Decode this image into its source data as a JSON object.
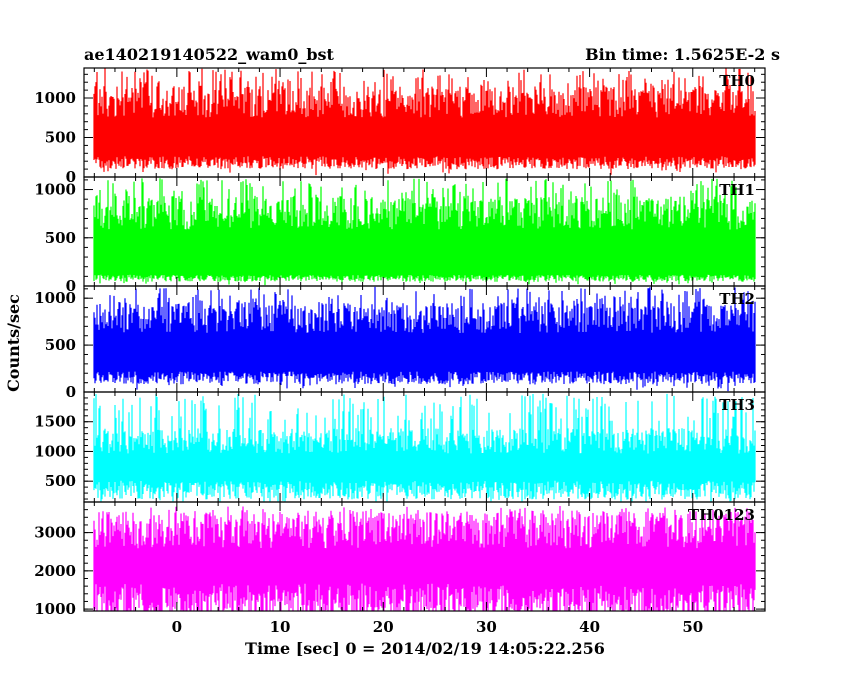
{
  "chart_data": {
    "type": "line",
    "title": "ae140219140522_wam0_bst",
    "subtitle": "Bin time: 1.5625E-2 s",
    "xlabel": "Time [sec] 0 = 2014/02/19 14:05:22.256",
    "ylabel": "Counts/sec",
    "xlim": [
      -9,
      57
    ],
    "x_start": -8,
    "x_end": 56,
    "x_step": 0.015625,
    "xticks": [
      0,
      10,
      20,
      30,
      40,
      50
    ],
    "grid": false,
    "panels": [
      {
        "name": "TH0",
        "color": "#ff0000",
        "ylim": [
          0,
          1380
        ],
        "yticks": [
          0,
          500,
          1000
        ],
        "baseline": 180,
        "mean": 600,
        "peak": 1380
      },
      {
        "name": "TH1",
        "color": "#00ff00",
        "ylim": [
          0,
          1130
        ],
        "yticks": [
          0,
          500,
          1000
        ],
        "baseline": 80,
        "mean": 450,
        "peak": 1120
      },
      {
        "name": "TH2",
        "color": "#0000ff",
        "ylim": [
          0,
          1130
        ],
        "yticks": [
          0,
          500,
          1000
        ],
        "baseline": 150,
        "mean": 500,
        "peak": 1120
      },
      {
        "name": "TH3",
        "color": "#00ffff",
        "ylim": [
          150,
          2000
        ],
        "yticks": [
          500,
          1000,
          1500
        ],
        "baseline": 350,
        "mean": 800,
        "peak": 1970
      },
      {
        "name": "TH0123",
        "color": "#ff00ff",
        "ylim": [
          950,
          3800
        ],
        "yticks": [
          1000,
          2000,
          3000
        ],
        "baseline": 1150,
        "mean": 2200,
        "peak": 3700
      }
    ]
  }
}
